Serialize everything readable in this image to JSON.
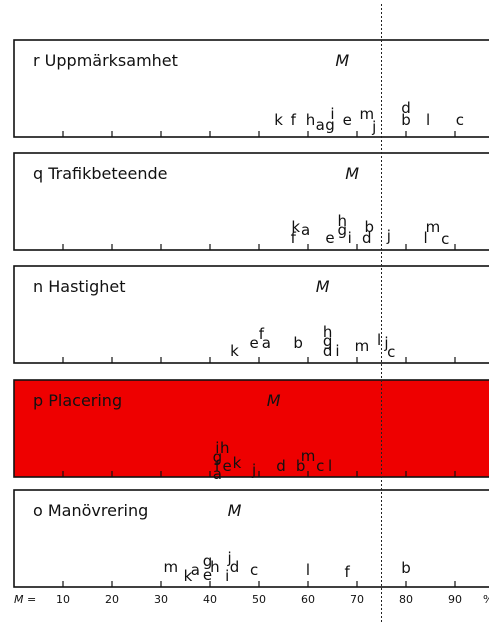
{
  "chart_data": {
    "type": "scatter",
    "x_axis": {
      "prefix": "M =",
      "ticks": [
        10,
        20,
        30,
        40,
        50,
        60,
        70,
        80,
        90
      ],
      "unit": "%",
      "range": [
        0,
        100
      ]
    },
    "reference_line": {
      "x": 75
    },
    "panels": [
      {
        "code": "r",
        "title": "Uppmärksamhet",
        "m_label": "M",
        "m_x": 67,
        "highlight": false,
        "points": [
          {
            "label": "k",
            "x": 54,
            "level": 0
          },
          {
            "label": "f",
            "x": 57,
            "level": 0
          },
          {
            "label": "h",
            "x": 60.5,
            "level": 0
          },
          {
            "label": "a",
            "x": 62.5,
            "level": -0.5
          },
          {
            "label": "g",
            "x": 64.5,
            "level": -0.5
          },
          {
            "label": "i",
            "x": 65,
            "level": 0.6
          },
          {
            "label": "e",
            "x": 68,
            "level": 0
          },
          {
            "label": "m",
            "x": 72,
            "level": 0.6
          },
          {
            "label": "j",
            "x": 73.5,
            "level": -0.7
          },
          {
            "label": "b",
            "x": 80,
            "level": 0
          },
          {
            "label": "d",
            "x": 80,
            "level": 1.2
          },
          {
            "label": "l",
            "x": 84.5,
            "level": 0
          },
          {
            "label": "c",
            "x": 91,
            "level": 0
          }
        ]
      },
      {
        "code": "q",
        "title": "Trafikbeteende",
        "m_label": "M",
        "m_x": 69,
        "highlight": false,
        "points": [
          {
            "label": "f",
            "x": 57,
            "level": -0.5
          },
          {
            "label": "k",
            "x": 57.5,
            "level": 0.6
          },
          {
            "label": "a",
            "x": 59.5,
            "level": 0.3
          },
          {
            "label": "e",
            "x": 64.5,
            "level": -0.5
          },
          {
            "label": "g",
            "x": 67,
            "level": 0.3
          },
          {
            "label": "h",
            "x": 67,
            "level": 1.2
          },
          {
            "label": "i",
            "x": 68.5,
            "level": -0.5
          },
          {
            "label": "d",
            "x": 72,
            "level": -0.5
          },
          {
            "label": "b",
            "x": 72.5,
            "level": 0.6
          },
          {
            "label": "j",
            "x": 76.5,
            "level": -0.3
          },
          {
            "label": "l",
            "x": 84,
            "level": -0.5
          },
          {
            "label": "m",
            "x": 85.5,
            "level": 0.6
          },
          {
            "label": "c",
            "x": 88,
            "level": -0.6
          }
        ]
      },
      {
        "code": "n",
        "title": "Hastighet",
        "m_label": "M",
        "m_x": 63,
        "highlight": false,
        "points": [
          {
            "label": "k",
            "x": 45,
            "level": -0.5
          },
          {
            "label": "e",
            "x": 49,
            "level": 0.3
          },
          {
            "label": "a",
            "x": 51.5,
            "level": 0.3
          },
          {
            "label": "f",
            "x": 50.5,
            "level": 1.2
          },
          {
            "label": "b",
            "x": 58,
            "level": 0.3
          },
          {
            "label": "d",
            "x": 64,
            "level": -0.5
          },
          {
            "label": "g",
            "x": 64,
            "level": 0.5
          },
          {
            "label": "h",
            "x": 64,
            "level": 1.4
          },
          {
            "label": "i",
            "x": 66,
            "level": -0.5
          },
          {
            "label": "m",
            "x": 71,
            "level": 0
          },
          {
            "label": "l",
            "x": 74.5,
            "level": 0.6
          },
          {
            "label": "j",
            "x": 76,
            "level": 0.3
          },
          {
            "label": "c",
            "x": 77,
            "level": -0.6
          }
        ]
      },
      {
        "code": "p",
        "title": "Placering",
        "m_label": "M",
        "m_x": 53,
        "highlight": true,
        "highlight_color": "#ee0000",
        "points": [
          {
            "label": "a",
            "x": 41.5,
            "level": -1.4
          },
          {
            "label": "f",
            "x": 41.5,
            "level": -0.6
          },
          {
            "label": "g",
            "x": 41.5,
            "level": 0.3
          },
          {
            "label": "i",
            "x": 41.5,
            "level": 1.2
          },
          {
            "label": "h",
            "x": 43,
            "level": 1.2
          },
          {
            "label": "e",
            "x": 43.5,
            "level": -0.6
          },
          {
            "label": "k",
            "x": 45.5,
            "level": -0.3
          },
          {
            "label": "j",
            "x": 49,
            "level": -1.0
          },
          {
            "label": "d",
            "x": 54.5,
            "level": -0.6
          },
          {
            "label": "b",
            "x": 58.5,
            "level": -0.6
          },
          {
            "label": "m",
            "x": 60,
            "level": 0.4
          },
          {
            "label": "c",
            "x": 62.5,
            "level": -0.6
          },
          {
            "label": "l",
            "x": 64.5,
            "level": -0.6
          }
        ]
      },
      {
        "code": "o",
        "title": "Manövrering",
        "m_label": "M",
        "m_x": 45,
        "highlight": false,
        "points": [
          {
            "label": "k",
            "x": 35.5,
            "level": -0.6
          },
          {
            "label": "m",
            "x": 32,
            "level": 0.3
          },
          {
            "label": "a",
            "x": 37,
            "level": 0
          },
          {
            "label": "e",
            "x": 39.5,
            "level": -0.5
          },
          {
            "label": "g",
            "x": 39.5,
            "level": 0.9
          },
          {
            "label": "h",
            "x": 41,
            "level": 0.3
          },
          {
            "label": "j",
            "x": 44,
            "level": 1.2
          },
          {
            "label": "i",
            "x": 43.5,
            "level": -0.6
          },
          {
            "label": "d",
            "x": 45,
            "level": 0.3
          },
          {
            "label": "c",
            "x": 49,
            "level": 0
          },
          {
            "label": "l",
            "x": 60,
            "level": 0
          },
          {
            "label": "f",
            "x": 68,
            "level": -0.2
          },
          {
            "label": "b",
            "x": 80,
            "level": 0.2
          }
        ]
      }
    ]
  }
}
